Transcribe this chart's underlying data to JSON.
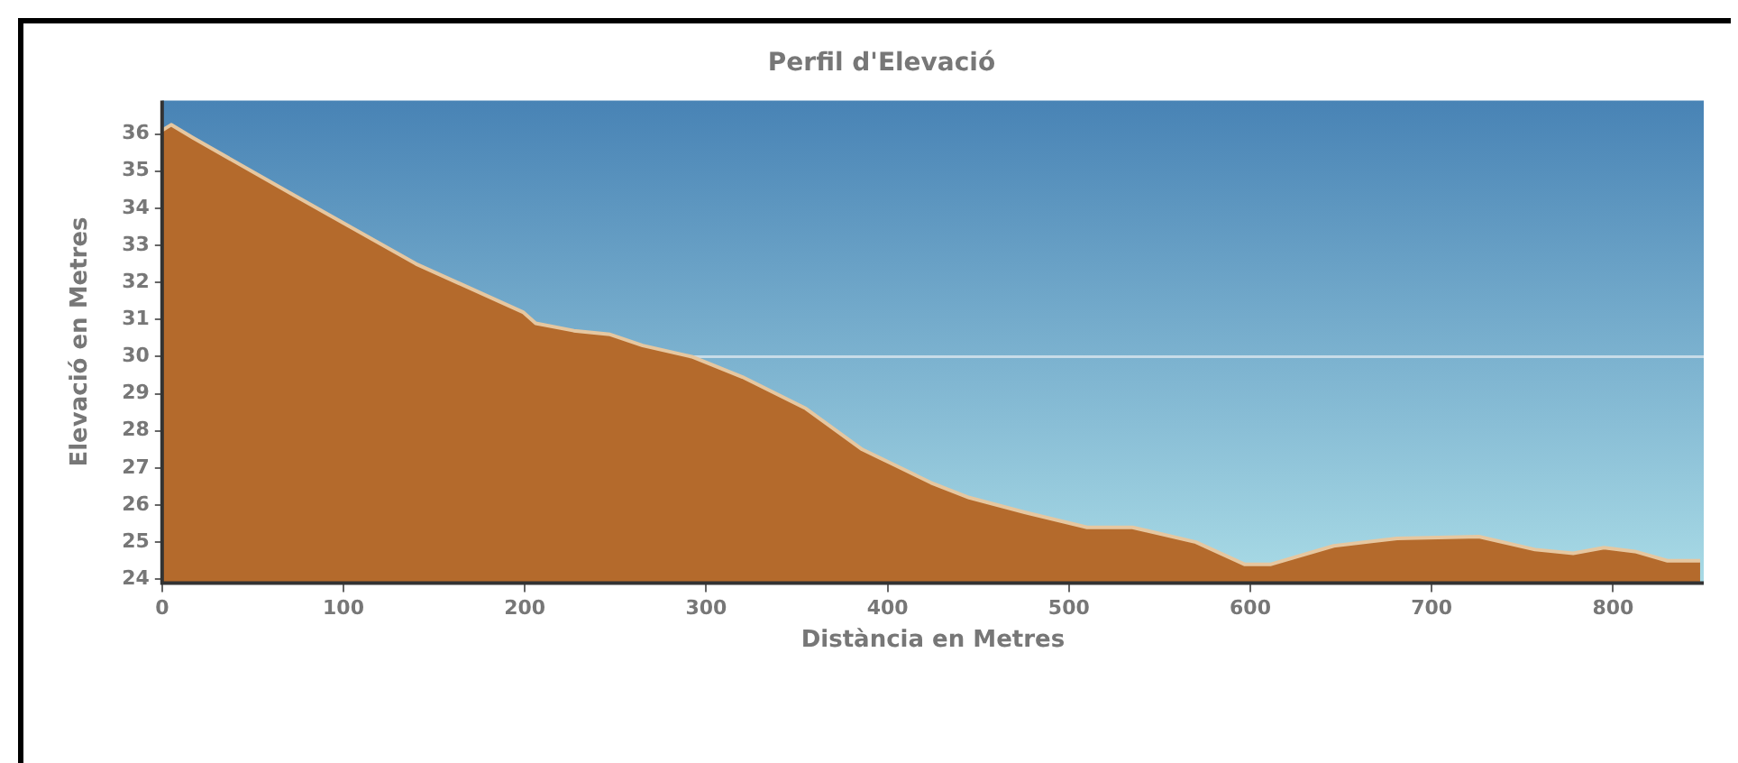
{
  "chart_data": {
    "type": "area",
    "title": "Perfil d'Elevació",
    "xlabel": "Distància en Metres",
    "ylabel": "Elevació en Metres",
    "xlim": [
      0,
      850
    ],
    "xticks": [
      0,
      100,
      200,
      300,
      400,
      500,
      600,
      700,
      800
    ],
    "ylim": [
      23.9,
      36.9
    ],
    "yticks": [
      24,
      25,
      26,
      27,
      28,
      29,
      30,
      31,
      32,
      33,
      34,
      35,
      36
    ],
    "grid": false,
    "legend": false,
    "ref_lines": [
      {
        "axis": "y",
        "value": 30,
        "color": "#c8dce8"
      }
    ],
    "series": [
      {
        "color": "#b46a2c",
        "x": [
          0,
          5,
          17,
          71,
          140,
          199,
          206,
          227,
          247,
          265,
          292,
          320,
          355,
          386,
          403,
          424,
          445,
          476,
          510,
          535,
          570,
          597,
          611,
          646,
          681,
          726,
          757,
          778,
          795,
          812,
          830,
          848
        ],
        "values": [
          36.1,
          36.25,
          35.9,
          34.4,
          32.5,
          31.2,
          30.9,
          30.7,
          30.6,
          30.3,
          30.0,
          29.45,
          28.6,
          27.5,
          27.1,
          26.6,
          26.2,
          25.8,
          25.4,
          25.4,
          25.0,
          24.4,
          24.4,
          24.9,
          25.1,
          25.15,
          24.8,
          24.7,
          24.85,
          24.75,
          24.5,
          24.5
        ]
      }
    ]
  }
}
